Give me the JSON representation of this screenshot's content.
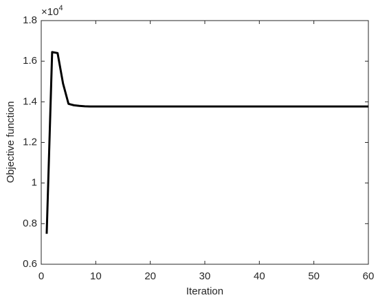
{
  "chart_data": {
    "type": "line",
    "xlabel": "Iteration",
    "ylabel": "Objective function",
    "y_exponent": {
      "base": "×10",
      "power": "4"
    },
    "x": [
      1,
      2,
      3,
      4,
      5,
      6,
      7,
      8,
      9,
      10,
      11,
      12,
      13,
      14,
      15,
      16,
      17,
      18,
      19,
      20,
      21,
      22,
      23,
      24,
      25,
      26,
      27,
      28,
      29,
      30,
      31,
      32,
      33,
      34,
      35,
      36,
      37,
      38,
      39,
      40,
      41,
      42,
      43,
      44,
      45,
      46,
      47,
      48,
      49,
      50,
      51,
      52,
      53,
      54,
      55,
      56,
      57,
      58,
      59,
      60
    ],
    "series": [
      {
        "name": "Objective function",
        "color": "#000000",
        "values": [
          7500,
          16450,
          16400,
          14900,
          13900,
          13830,
          13800,
          13780,
          13770,
          13770,
          13770,
          13770,
          13770,
          13770,
          13770,
          13770,
          13770,
          13770,
          13770,
          13770,
          13770,
          13770,
          13770,
          13770,
          13770,
          13770,
          13770,
          13770,
          13770,
          13770,
          13770,
          13770,
          13770,
          13770,
          13770,
          13770,
          13770,
          13770,
          13770,
          13770,
          13770,
          13770,
          13770,
          13770,
          13770,
          13770,
          13770,
          13770,
          13770,
          13770,
          13770,
          13770,
          13770,
          13770,
          13770,
          13770,
          13770,
          13770,
          13770,
          13770
        ]
      }
    ],
    "xlim": [
      0,
      60
    ],
    "xticks": [
      0,
      10,
      20,
      30,
      40,
      50,
      60
    ],
    "ylim": [
      6000,
      18000
    ],
    "yticks": [
      {
        "value": 6000,
        "label": "0.6"
      },
      {
        "value": 8000,
        "label": "0.8"
      },
      {
        "value": 10000,
        "label": "1"
      },
      {
        "value": 12000,
        "label": "1.2"
      },
      {
        "value": 14000,
        "label": "1.4"
      },
      {
        "value": 16000,
        "label": "1.6"
      },
      {
        "value": 18000,
        "label": "1.8"
      }
    ],
    "grid": false
  }
}
